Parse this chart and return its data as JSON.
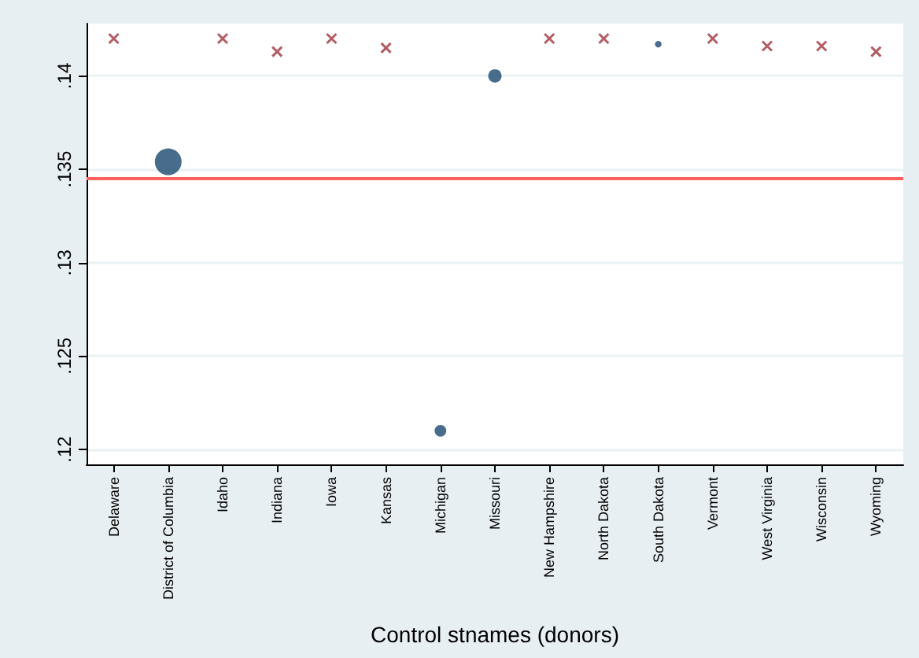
{
  "chart_data": {
    "type": "scatter",
    "xlabel": "Control stnames (donors)",
    "categories": [
      "Delaware",
      "District of Columbia",
      "Idaho",
      "Indiana",
      "Iowa",
      "Kansas",
      "Michigan",
      "Missouri",
      "New Hampshire",
      "North Dakota",
      "South Dakota",
      "Vermont",
      "West Virginia",
      "Wisconsin",
      "Wyoming"
    ],
    "series": [
      {
        "type": "scatter",
        "marker": "cross",
        "color": "#a0343f",
        "values": [
          0.142,
          null,
          0.142,
          0.1413,
          0.142,
          0.1415,
          null,
          null,
          0.142,
          0.142,
          null,
          0.142,
          0.1416,
          0.1416,
          0.1413
        ]
      },
      {
        "type": "bubble",
        "marker": "circle",
        "color": "#1a476f",
        "values": [
          null,
          0.1354,
          null,
          null,
          null,
          null,
          0.121,
          0.14,
          null,
          null,
          0.1417,
          null,
          null,
          null,
          null
        ],
        "sizes": [
          null,
          1,
          null,
          null,
          null,
          null,
          0.19,
          0.25,
          null,
          null,
          0.06,
          null,
          null,
          null,
          null
        ]
      }
    ],
    "ylim": [
      0.1192,
      0.1428
    ],
    "yticks": [
      {
        "value": 0.12,
        "label": ".12"
      },
      {
        "value": 0.125,
        "label": ".125"
      },
      {
        "value": 0.13,
        "label": ".13"
      },
      {
        "value": 0.135,
        "label": ".135"
      },
      {
        "value": 0.14,
        "label": ".14"
      }
    ],
    "ref_lines": [
      {
        "axis": "y",
        "value": 0.1345,
        "color": "#ff6060"
      }
    ],
    "grid": "y"
  }
}
